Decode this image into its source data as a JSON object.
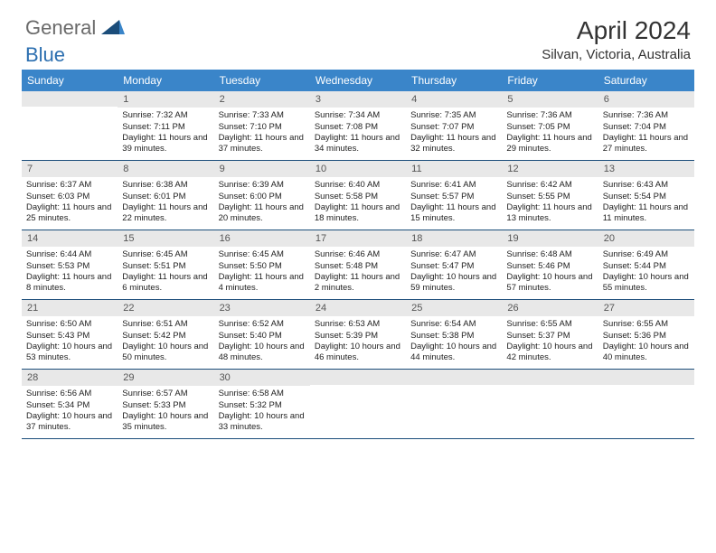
{
  "logo": {
    "part1": "General",
    "part2": "Blue"
  },
  "title": "April 2024",
  "location": "Silvan, Victoria, Australia",
  "colors": {
    "header_bg": "#3a85c9",
    "border": "#1b4d7a",
    "daynum_bg": "#e8e8e8",
    "logo_gray": "#6a6a6a",
    "logo_blue": "#2c6fb0"
  },
  "day_names": [
    "Sunday",
    "Monday",
    "Tuesday",
    "Wednesday",
    "Thursday",
    "Friday",
    "Saturday"
  ],
  "weeks": [
    [
      {
        "n": "",
        "sr": "",
        "ss": "",
        "dl": ""
      },
      {
        "n": "1",
        "sr": "Sunrise: 7:32 AM",
        "ss": "Sunset: 7:11 PM",
        "dl": "Daylight: 11 hours and 39 minutes."
      },
      {
        "n": "2",
        "sr": "Sunrise: 7:33 AM",
        "ss": "Sunset: 7:10 PM",
        "dl": "Daylight: 11 hours and 37 minutes."
      },
      {
        "n": "3",
        "sr": "Sunrise: 7:34 AM",
        "ss": "Sunset: 7:08 PM",
        "dl": "Daylight: 11 hours and 34 minutes."
      },
      {
        "n": "4",
        "sr": "Sunrise: 7:35 AM",
        "ss": "Sunset: 7:07 PM",
        "dl": "Daylight: 11 hours and 32 minutes."
      },
      {
        "n": "5",
        "sr": "Sunrise: 7:36 AM",
        "ss": "Sunset: 7:05 PM",
        "dl": "Daylight: 11 hours and 29 minutes."
      },
      {
        "n": "6",
        "sr": "Sunrise: 7:36 AM",
        "ss": "Sunset: 7:04 PM",
        "dl": "Daylight: 11 hours and 27 minutes."
      }
    ],
    [
      {
        "n": "7",
        "sr": "Sunrise: 6:37 AM",
        "ss": "Sunset: 6:03 PM",
        "dl": "Daylight: 11 hours and 25 minutes."
      },
      {
        "n": "8",
        "sr": "Sunrise: 6:38 AM",
        "ss": "Sunset: 6:01 PM",
        "dl": "Daylight: 11 hours and 22 minutes."
      },
      {
        "n": "9",
        "sr": "Sunrise: 6:39 AM",
        "ss": "Sunset: 6:00 PM",
        "dl": "Daylight: 11 hours and 20 minutes."
      },
      {
        "n": "10",
        "sr": "Sunrise: 6:40 AM",
        "ss": "Sunset: 5:58 PM",
        "dl": "Daylight: 11 hours and 18 minutes."
      },
      {
        "n": "11",
        "sr": "Sunrise: 6:41 AM",
        "ss": "Sunset: 5:57 PM",
        "dl": "Daylight: 11 hours and 15 minutes."
      },
      {
        "n": "12",
        "sr": "Sunrise: 6:42 AM",
        "ss": "Sunset: 5:55 PM",
        "dl": "Daylight: 11 hours and 13 minutes."
      },
      {
        "n": "13",
        "sr": "Sunrise: 6:43 AM",
        "ss": "Sunset: 5:54 PM",
        "dl": "Daylight: 11 hours and 11 minutes."
      }
    ],
    [
      {
        "n": "14",
        "sr": "Sunrise: 6:44 AM",
        "ss": "Sunset: 5:53 PM",
        "dl": "Daylight: 11 hours and 8 minutes."
      },
      {
        "n": "15",
        "sr": "Sunrise: 6:45 AM",
        "ss": "Sunset: 5:51 PM",
        "dl": "Daylight: 11 hours and 6 minutes."
      },
      {
        "n": "16",
        "sr": "Sunrise: 6:45 AM",
        "ss": "Sunset: 5:50 PM",
        "dl": "Daylight: 11 hours and 4 minutes."
      },
      {
        "n": "17",
        "sr": "Sunrise: 6:46 AM",
        "ss": "Sunset: 5:48 PM",
        "dl": "Daylight: 11 hours and 2 minutes."
      },
      {
        "n": "18",
        "sr": "Sunrise: 6:47 AM",
        "ss": "Sunset: 5:47 PM",
        "dl": "Daylight: 10 hours and 59 minutes."
      },
      {
        "n": "19",
        "sr": "Sunrise: 6:48 AM",
        "ss": "Sunset: 5:46 PM",
        "dl": "Daylight: 10 hours and 57 minutes."
      },
      {
        "n": "20",
        "sr": "Sunrise: 6:49 AM",
        "ss": "Sunset: 5:44 PM",
        "dl": "Daylight: 10 hours and 55 minutes."
      }
    ],
    [
      {
        "n": "21",
        "sr": "Sunrise: 6:50 AM",
        "ss": "Sunset: 5:43 PM",
        "dl": "Daylight: 10 hours and 53 minutes."
      },
      {
        "n": "22",
        "sr": "Sunrise: 6:51 AM",
        "ss": "Sunset: 5:42 PM",
        "dl": "Daylight: 10 hours and 50 minutes."
      },
      {
        "n": "23",
        "sr": "Sunrise: 6:52 AM",
        "ss": "Sunset: 5:40 PM",
        "dl": "Daylight: 10 hours and 48 minutes."
      },
      {
        "n": "24",
        "sr": "Sunrise: 6:53 AM",
        "ss": "Sunset: 5:39 PM",
        "dl": "Daylight: 10 hours and 46 minutes."
      },
      {
        "n": "25",
        "sr": "Sunrise: 6:54 AM",
        "ss": "Sunset: 5:38 PM",
        "dl": "Daylight: 10 hours and 44 minutes."
      },
      {
        "n": "26",
        "sr": "Sunrise: 6:55 AM",
        "ss": "Sunset: 5:37 PM",
        "dl": "Daylight: 10 hours and 42 minutes."
      },
      {
        "n": "27",
        "sr": "Sunrise: 6:55 AM",
        "ss": "Sunset: 5:36 PM",
        "dl": "Daylight: 10 hours and 40 minutes."
      }
    ],
    [
      {
        "n": "28",
        "sr": "Sunrise: 6:56 AM",
        "ss": "Sunset: 5:34 PM",
        "dl": "Daylight: 10 hours and 37 minutes."
      },
      {
        "n": "29",
        "sr": "Sunrise: 6:57 AM",
        "ss": "Sunset: 5:33 PM",
        "dl": "Daylight: 10 hours and 35 minutes."
      },
      {
        "n": "30",
        "sr": "Sunrise: 6:58 AM",
        "ss": "Sunset: 5:32 PM",
        "dl": "Daylight: 10 hours and 33 minutes."
      },
      {
        "n": "",
        "sr": "",
        "ss": "",
        "dl": ""
      },
      {
        "n": "",
        "sr": "",
        "ss": "",
        "dl": ""
      },
      {
        "n": "",
        "sr": "",
        "ss": "",
        "dl": ""
      },
      {
        "n": "",
        "sr": "",
        "ss": "",
        "dl": ""
      }
    ]
  ]
}
